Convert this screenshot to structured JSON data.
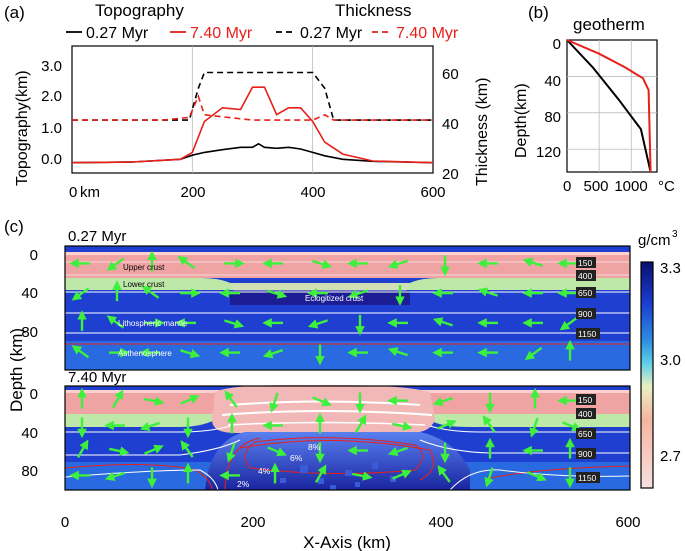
{
  "panel_a": {
    "label": "(a)",
    "title_left": "Topography",
    "title_right": "Thickness",
    "legend_topo_1": "0.27 Myr",
    "legend_topo_2": "7.40 Myr",
    "legend_thick_1": "0.27 Myr",
    "legend_thick_2": "7.40 Myr",
    "ylabel_left": "Topography(km)",
    "ylabel_right": "Thickness (km)",
    "x_unit": "km",
    "left_ticks": [
      "0.0",
      "1.0",
      "2.0",
      "3.0"
    ],
    "right_ticks": [
      "20",
      "40",
      "60"
    ],
    "x_ticks": [
      "0",
      "200",
      "400",
      "600"
    ]
  },
  "panel_b": {
    "label": "(b)",
    "title": "geotherm",
    "ylabel": "Depth(km)",
    "unit": "°C",
    "y_ticks": [
      "0",
      "40",
      "80",
      "120"
    ],
    "x_ticks": [
      "0",
      "500",
      "1000"
    ]
  },
  "panel_c": {
    "label": "(c)",
    "time_top": "0.27 Myr",
    "time_bottom": "7.40 Myr",
    "ylabel": "Depth (km)",
    "xlabel": "X-Axis (km)",
    "x_ticks": [
      "0",
      "200",
      "400",
      "600"
    ],
    "y_ticks": [
      "0",
      "40",
      "80"
    ],
    "layer_labels": [
      "Upper crust",
      "Lower crust",
      "Eclogitized crust",
      "Lithospheric mantle",
      "Asthenosphere"
    ],
    "isotherm_labels": [
      "150",
      "400",
      "650",
      "900",
      "1150"
    ],
    "percent_labels": [
      "8%",
      "6%",
      "4%",
      "2%"
    ],
    "colorbar_unit": "g/cm",
    "colorbar_unit_sup": "3",
    "colorbar_ticks": [
      "3.3",
      "3.0",
      "2.7"
    ]
  },
  "colors": {
    "t1": "#000000",
    "t2": "#e8201a",
    "arrow": "#3cf03c",
    "upper_crust": "#f0a3a3",
    "lower_crust": "#bde8a8",
    "mantle": "#1f3fd0",
    "asthenosphere": "#2a6ae0"
  },
  "chart_data": [
    {
      "type": "line",
      "panel": "a-topography",
      "x": [
        0,
        100,
        180,
        200,
        220,
        250,
        280,
        300,
        310,
        320,
        340,
        360,
        380,
        400,
        420,
        450,
        500,
        600
      ],
      "series": [
        {
          "name": "0.27 Myr",
          "values": [
            0.0,
            0.02,
            0.1,
            0.22,
            0.3,
            0.38,
            0.45,
            0.45,
            0.55,
            0.45,
            0.42,
            0.45,
            0.4,
            0.3,
            0.2,
            0.1,
            0.04,
            0.0
          ]
        },
        {
          "name": "7.40 Myr",
          "values": [
            0.0,
            0.02,
            0.1,
            0.3,
            1.2,
            1.6,
            1.55,
            2.2,
            2.2,
            2.2,
            1.4,
            1.6,
            1.6,
            1.2,
            0.6,
            0.25,
            0.05,
            0.0
          ]
        }
      ],
      "ylim": [
        -0.3,
        3.4
      ],
      "xlim": [
        0,
        600
      ]
    },
    {
      "type": "line",
      "panel": "a-thickness",
      "x": [
        0,
        150,
        195,
        210,
        220,
        300,
        400,
        420,
        435,
        600
      ],
      "series": [
        {
          "name": "0.27 Myr",
          "values": [
            40,
            40,
            40,
            52,
            58,
            58,
            58,
            52,
            40,
            40
          ]
        },
        {
          "name": "7.40 Myr",
          "values": [
            40,
            40,
            41,
            49,
            42,
            40,
            40,
            42,
            40,
            40
          ]
        }
      ],
      "ylim": [
        20,
        68
      ]
    },
    {
      "type": "line",
      "panel": "b-geotherm",
      "series": [
        {
          "name": "0.27 Myr",
          "points": [
            [
              0,
              0
            ],
            [
              400,
              30
            ],
            [
              800,
              65
            ],
            [
              1150,
              98
            ],
            [
              1300,
              145
            ]
          ]
        },
        {
          "name": "7.40 Myr",
          "points": [
            [
              0,
              0
            ],
            [
              500,
              15
            ],
            [
              900,
              30
            ],
            [
              1180,
              42
            ],
            [
              1270,
              55
            ],
            [
              1300,
              145
            ]
          ]
        }
      ],
      "xlim": [
        0,
        1400
      ],
      "ylim": [
        0,
        145
      ]
    }
  ]
}
